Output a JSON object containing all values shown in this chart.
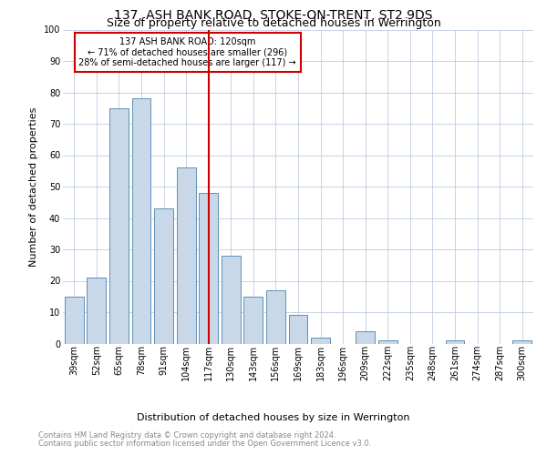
{
  "title": "137, ASH BANK ROAD, STOKE-ON-TRENT, ST2 9DS",
  "subtitle": "Size of property relative to detached houses in Werrington",
  "xlabel": "Distribution of detached houses by size in Werrington",
  "ylabel": "Number of detached properties",
  "bar_labels": [
    "39sqm",
    "52sqm",
    "65sqm",
    "78sqm",
    "91sqm",
    "104sqm",
    "117sqm",
    "130sqm",
    "143sqm",
    "156sqm",
    "169sqm",
    "183sqm",
    "196sqm",
    "209sqm",
    "222sqm",
    "235sqm",
    "248sqm",
    "261sqm",
    "274sqm",
    "287sqm",
    "300sqm"
  ],
  "bar_values": [
    15,
    21,
    75,
    78,
    43,
    56,
    48,
    28,
    15,
    17,
    9,
    2,
    0,
    4,
    1,
    0,
    0,
    1,
    0,
    0,
    1
  ],
  "bar_color": "#c8d8e8",
  "bar_edge_color": "#6090b8",
  "vline_x_index": 6,
  "vline_color": "#cc0000",
  "annotation_lines": [
    "137 ASH BANK ROAD: 120sqm",
    "← 71% of detached houses are smaller (296)",
    "28% of semi-detached houses are larger (117) →"
  ],
  "annotation_box_color": "#cc0000",
  "ylim": [
    0,
    100
  ],
  "yticks": [
    0,
    10,
    20,
    30,
    40,
    50,
    60,
    70,
    80,
    90,
    100
  ],
  "footnote_line1": "Contains HM Land Registry data © Crown copyright and database right 2024.",
  "footnote_line2": "Contains public sector information licensed under the Open Government Licence v3.0.",
  "bg_color": "#ffffff",
  "grid_color": "#c0cce0",
  "title_fontsize": 10,
  "subtitle_fontsize": 9,
  "ylabel_fontsize": 8,
  "xlabel_fontsize": 8,
  "tick_fontsize": 7,
  "annot_fontsize": 7,
  "footnote_fontsize": 6
}
